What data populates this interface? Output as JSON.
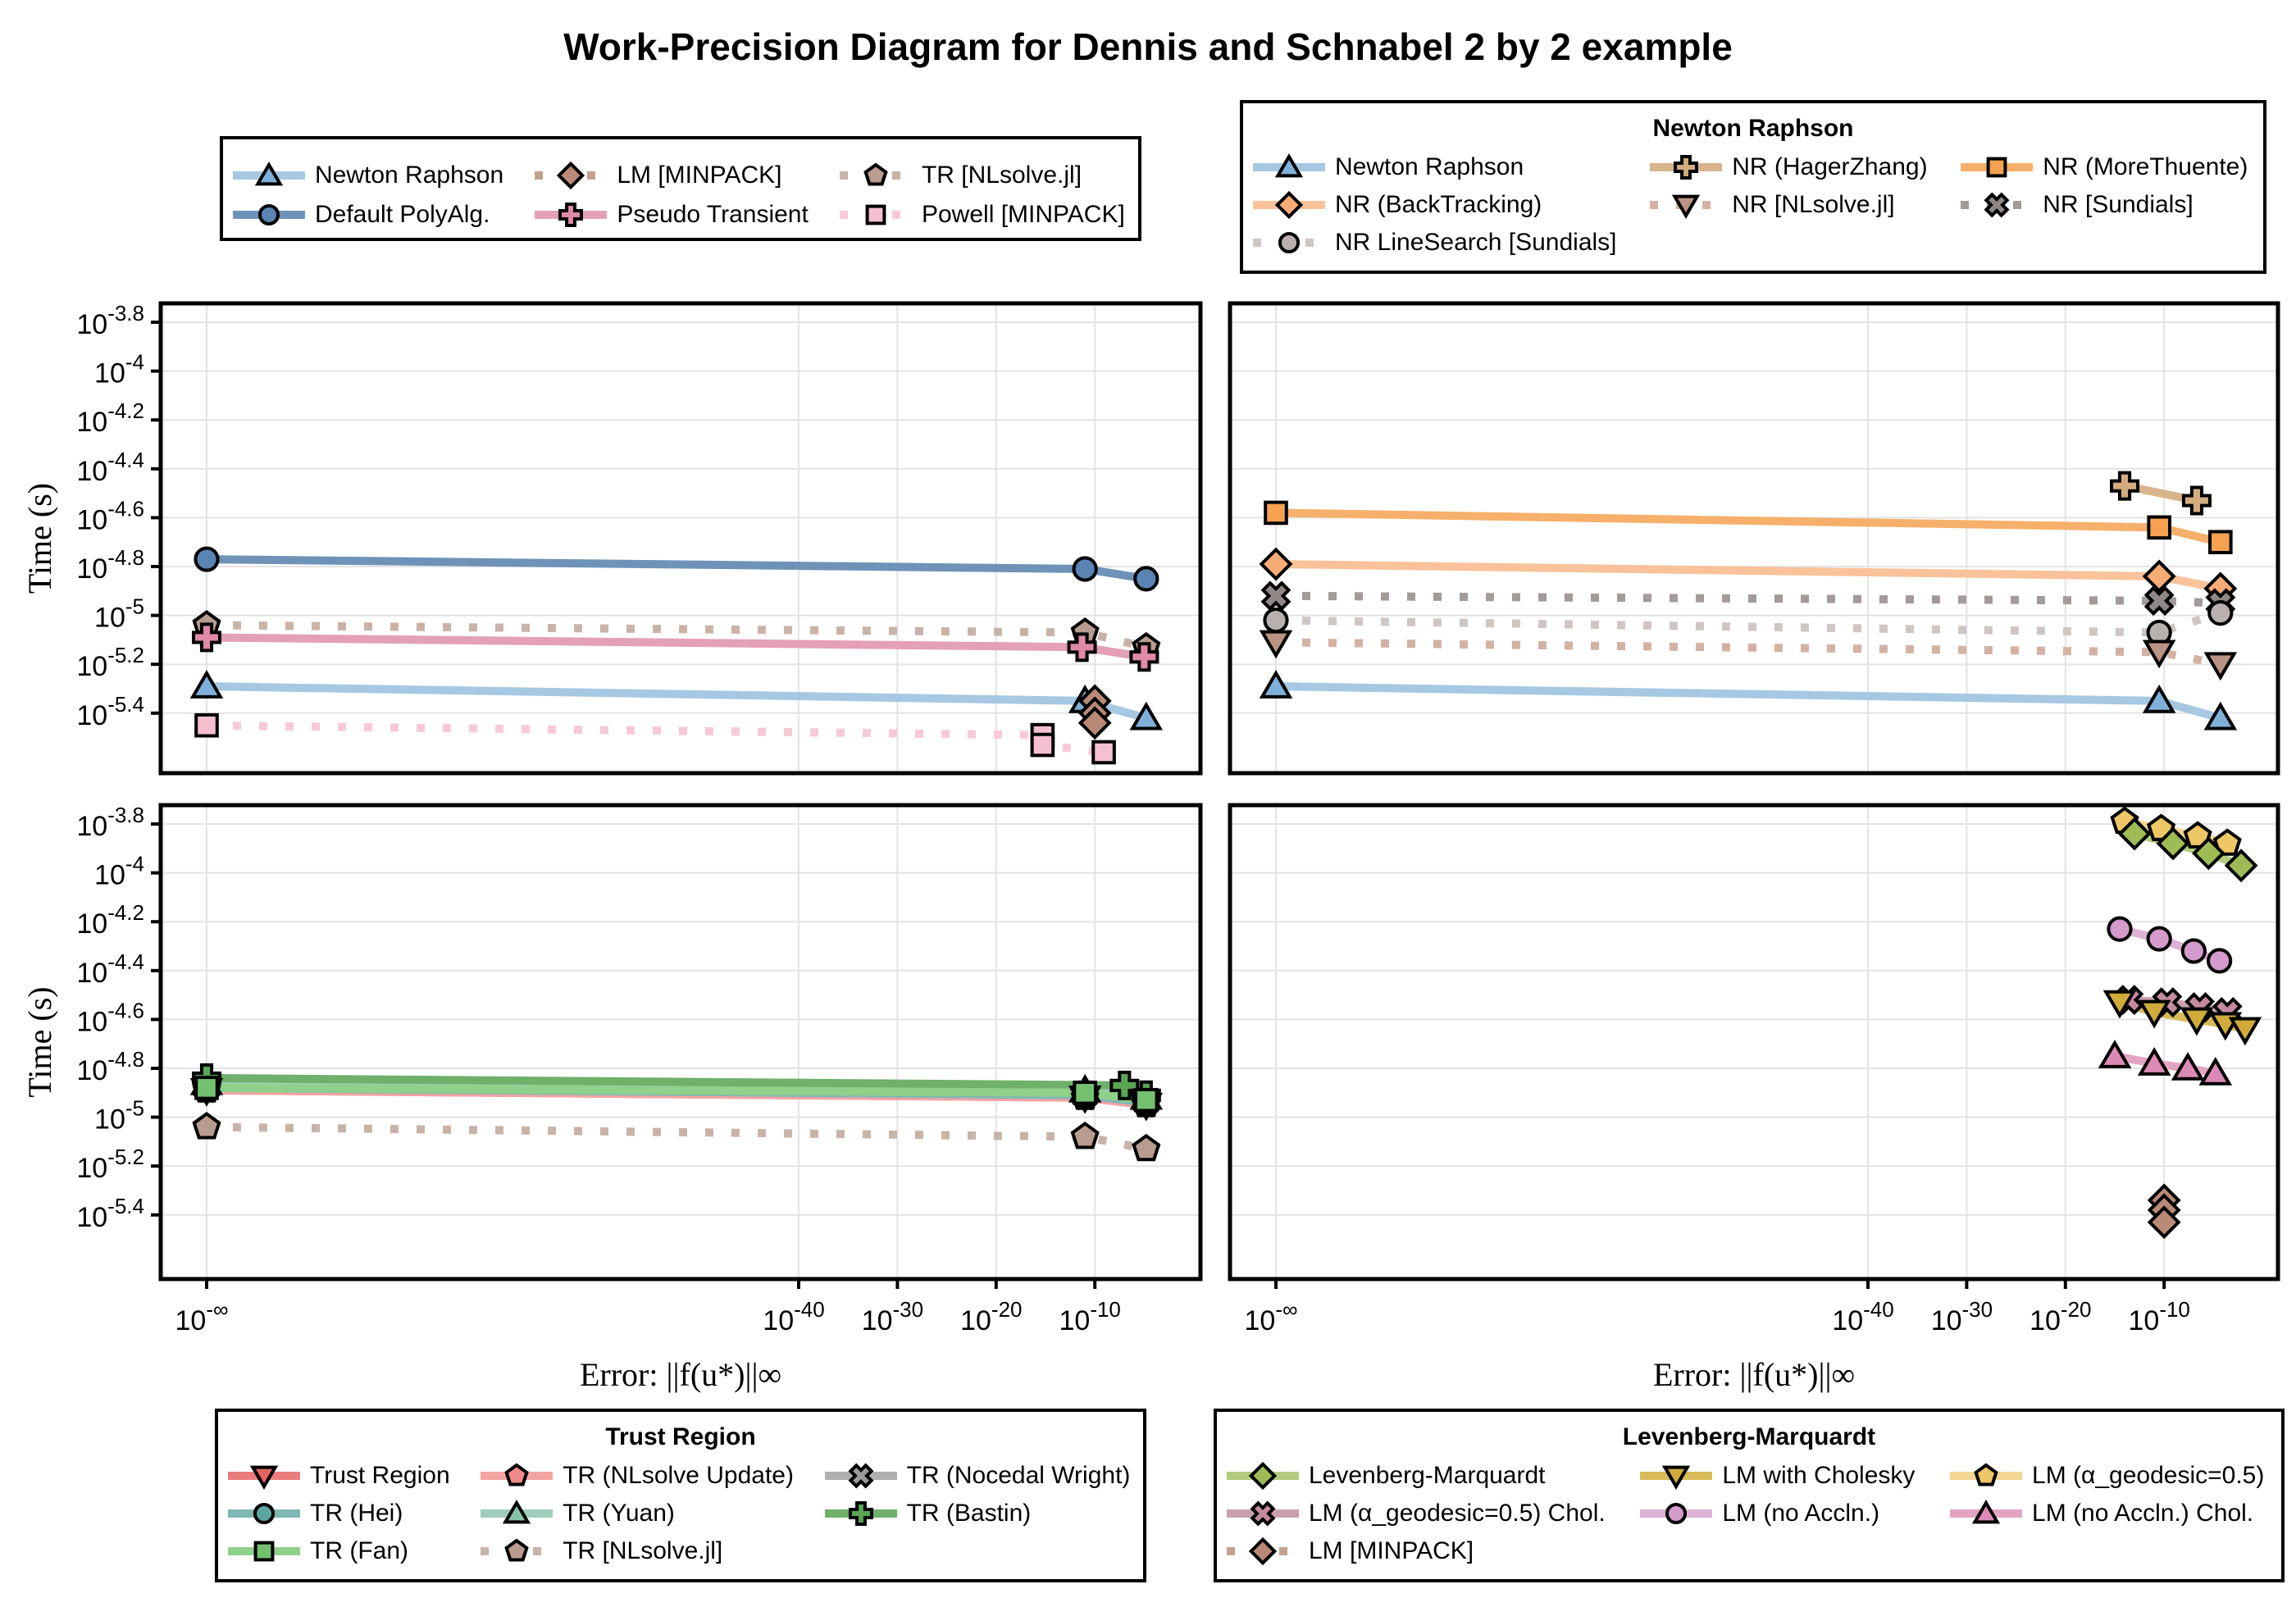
{
  "title": "Work-Precision Diagram for Dennis and Schnabel 2 by 2 example",
  "legends": {
    "general": {
      "title": "",
      "columns": 3,
      "items": [
        {
          "label": "Newton Raphson",
          "series": "Newton Raphson"
        },
        {
          "label": "LM [MINPACK]",
          "series": "LM [MINPACK]"
        },
        {
          "label": "TR [NLsolve.jl]",
          "series": "TR [NLsolve.jl]"
        },
        {
          "label": "Default PolyAlg.",
          "series": "Default PolyAlg."
        },
        {
          "label": "Pseudo Transient",
          "series": "Pseudo Transient"
        },
        {
          "label": "Powell [MINPACK]",
          "series": "Powell [MINPACK]"
        }
      ]
    },
    "newton": {
      "title": "Newton Raphson",
      "columns": 3,
      "items": [
        {
          "label": "Newton Raphson",
          "series": "Newton Raphson"
        },
        {
          "label": "NR (HagerZhang)",
          "series": "NR (HagerZhang)"
        },
        {
          "label": "NR (MoreThuente)",
          "series": "NR (MoreThuente)"
        },
        {
          "label": "NR (BackTracking)",
          "series": "NR (BackTracking)"
        },
        {
          "label": "NR [NLsolve.jl]",
          "series": "NR [NLsolve.jl]"
        },
        {
          "label": "NR [Sundials]",
          "series": "NR [Sundials]"
        },
        {
          "label": "NR LineSearch [Sundials]",
          "series": "NR LineSearch [Sundials]"
        }
      ]
    },
    "trust": {
      "title": "Trust Region",
      "columns": 3,
      "items": [
        {
          "label": "Trust Region",
          "series": "Trust Region"
        },
        {
          "label": "TR (NLsolve Update)",
          "series": "TR (NLsolve Update)"
        },
        {
          "label": "TR (Nocedal Wright)",
          "series": "TR (Nocedal Wright)"
        },
        {
          "label": "TR (Hei)",
          "series": "TR (Hei)"
        },
        {
          "label": "TR (Yuan)",
          "series": "TR (Yuan)"
        },
        {
          "label": "TR (Bastin)",
          "series": "TR (Bastin)"
        },
        {
          "label": "TR (Fan)",
          "series": "TR (Fan)"
        },
        {
          "label": "TR [NLsolve.jl]",
          "series": "TR [NLsolve.jl]"
        }
      ]
    },
    "lm": {
      "title": "Levenberg-Marquardt",
      "columns": 3,
      "items": [
        {
          "label": "Levenberg-Marquardt",
          "series": "Levenberg-Marquardt"
        },
        {
          "label": "LM with Cholesky",
          "series": "LM with Cholesky"
        },
        {
          "label": "LM (α_geodesic=0.5)",
          "series": "LM (α_geodesic=0.5)"
        },
        {
          "label": "LM (α_geodesic=0.5) Chol.",
          "series": "LM (α_geodesic=0.5) Chol."
        },
        {
          "label": "LM (no Accln.)",
          "series": "LM (no Accln.)"
        },
        {
          "label": "LM (no Accln.) Chol.",
          "series": "LM (no Accln.) Chol."
        },
        {
          "label": "LM [MINPACK]",
          "series": "LM [MINPACK]"
        }
      ]
    }
  },
  "styles": {
    "Newton Raphson": {
      "color": "#a6c8e2",
      "marker_fill": "#7fb0d9",
      "marker": "triangle-up",
      "dash": false
    },
    "Default PolyAlg.": {
      "color": "#6f93b8",
      "marker_fill": "#5a84b3",
      "marker": "circle",
      "dash": false
    },
    "LM [MINPACK]": {
      "color": "#c4a090",
      "marker_fill": "#b98a78",
      "marker": "diamond",
      "dash": true
    },
    "Pseudo Transient": {
      "color": "#e3a0b6",
      "marker_fill": "#e08aa8",
      "marker": "cross",
      "dash": false
    },
    "TR [NLsolve.jl]": {
      "color": "#c9b3a8",
      "marker_fill": "#b89c8f",
      "marker": "pentagon",
      "dash": true
    },
    "Powell [MINPACK]": {
      "color": "#f7c9d6",
      "marker_fill": "#f5bfd0",
      "marker": "square",
      "dash": true
    },
    "NR (HagerZhang)": {
      "color": "#d8b48c",
      "marker_fill": "#d4ac7d",
      "marker": "cross",
      "dash": false
    },
    "NR (MoreThuente)": {
      "color": "#f6b06b",
      "marker_fill": "#f5a14f",
      "marker": "square",
      "dash": false
    },
    "NR (BackTracking)": {
      "color": "#f9c29a",
      "marker_fill": "#f7ac76",
      "marker": "diamond",
      "dash": false
    },
    "NR [NLsolve.jl]": {
      "color": "#d3b2a4",
      "marker_fill": "#bb9384",
      "marker": "triangle-down",
      "dash": true
    },
    "NR [Sundials]": {
      "color": "#a39a9a",
      "marker_fill": "#8f8686",
      "marker": "xcross",
      "dash": true
    },
    "NR LineSearch [Sundials]": {
      "color": "#cfc6c4",
      "marker_fill": "#b9b1b0",
      "marker": "circle",
      "dash": true
    },
    "Trust Region": {
      "color": "#e87c7c",
      "marker_fill": "#e36464",
      "marker": "triangle-down",
      "dash": false
    },
    "TR (NLsolve Update)": {
      "color": "#f5a3a3",
      "marker_fill": "#f08b8b",
      "marker": "pentagon",
      "dash": false
    },
    "TR (Nocedal Wright)": {
      "color": "#b0b0b0",
      "marker_fill": "#9a9a9a",
      "marker": "xcross",
      "dash": false
    },
    "TR (Hei)": {
      "color": "#7fb7b4",
      "marker_fill": "#5ea5a2",
      "marker": "circle",
      "dash": false
    },
    "TR (Yuan)": {
      "color": "#9fcdb9",
      "marker_fill": "#86c2a8",
      "marker": "triangle-up",
      "dash": false
    },
    "TR (Bastin)": {
      "color": "#6fb06a",
      "marker_fill": "#5aa655",
      "marker": "cross",
      "dash": false
    },
    "TR (Fan)": {
      "color": "#8fd08a",
      "marker_fill": "#74c06f",
      "marker": "square",
      "dash": false
    },
    "Levenberg-Marquardt": {
      "color": "#b3cc80",
      "marker_fill": "#9fbb55",
      "marker": "diamond",
      "dash": false
    },
    "LM with Cholesky": {
      "color": "#d8bb58",
      "marker_fill": "#d0ab3a",
      "marker": "triangle-down",
      "dash": false
    },
    "LM (α_geodesic=0.5)": {
      "color": "#f3d693",
      "marker_fill": "#efc665",
      "marker": "pentagon",
      "dash": false
    },
    "LM (α_geodesic=0.5) Chol.": {
      "color": "#c9a0b0",
      "marker_fill": "#c48ba0",
      "marker": "xcross",
      "dash": false
    },
    "LM (no Accln.)": {
      "color": "#ddb2d6",
      "marker_fill": "#d39acb",
      "marker": "circle",
      "dash": false
    },
    "LM (no Accln.) Chol.": {
      "color": "#e3a4c4",
      "marker_fill": "#db8ab5",
      "marker": "triangle-up",
      "dash": false
    }
  },
  "chart_data": [
    {
      "type": "line",
      "panel": "top-left",
      "title": "",
      "xlabel": "Error: ||f(u*)||∞",
      "ylabel": "Time (s)",
      "xscale": "log10",
      "yscale": "log10",
      "xlim_log10": [
        -72,
        0.6
      ],
      "ylim_log10": [
        -5.8,
        -3.7
      ],
      "x_tick_labels": [],
      "y_ticks_log10": [
        -3.8,
        -4,
        -4.2,
        -4.4,
        -4.6,
        -4.8,
        -5,
        -5.2,
        -5.4
      ],
      "y_tick_labels": [
        "-3.8",
        "-4",
        "-4.2",
        "-4.4",
        "-4.6",
        "-4.8",
        "-5",
        "-5.2",
        "-5.4"
      ],
      "grid": true,
      "legend": "top-left-outside",
      "series": [
        {
          "name": "Default PolyAlg.",
          "x_log10": [
            "-inf",
            -11,
            -4.8
          ],
          "y_log10": [
            -4.77,
            -4.81,
            -4.85
          ]
        },
        {
          "name": "TR [NLsolve.jl]",
          "x_log10": [
            "-inf",
            -11,
            -4.8
          ],
          "y_log10": [
            -5.04,
            -5.07,
            -5.13
          ]
        },
        {
          "name": "Pseudo Transient",
          "x_log10": [
            "-inf",
            -11.3,
            -5
          ],
          "y_log10": [
            -5.09,
            -5.13,
            -5.17
          ]
        },
        {
          "name": "Newton Raphson",
          "x_log10": [
            "-inf",
            -11,
            -4.8
          ],
          "y_log10": [
            -5.29,
            -5.35,
            -5.42
          ]
        },
        {
          "name": "LM [MINPACK]",
          "x_log10": [
            -10,
            -10,
            -10
          ],
          "y_log10": [
            -5.35,
            -5.4,
            -5.44
          ]
        },
        {
          "name": "Powell [MINPACK]",
          "x_log10": [
            "-inf",
            -15.3,
            -15.3,
            -9.1
          ],
          "y_log10": [
            -5.45,
            -5.49,
            -5.53,
            -5.56
          ]
        }
      ]
    },
    {
      "type": "line",
      "panel": "top-right",
      "title": "",
      "xlabel": "Error: ||f(u*)||∞",
      "ylabel": "",
      "xscale": "log10",
      "yscale": "log10",
      "xlim_log10": [
        -72,
        0.6
      ],
      "ylim_log10": [
        -5.8,
        -3.7
      ],
      "grid": true,
      "legend": "top-right-outside",
      "series": [
        {
          "name": "NR (HagerZhang)",
          "x_log10": [
            -14,
            -6.7
          ],
          "y_log10": [
            -4.47,
            -4.53
          ]
        },
        {
          "name": "NR (MoreThuente)",
          "x_log10": [
            "-inf",
            -10.5,
            -4.3
          ],
          "y_log10": [
            -4.58,
            -4.64,
            -4.7
          ]
        },
        {
          "name": "NR (BackTracking)",
          "x_log10": [
            "-inf",
            -10.5,
            -4.3
          ],
          "y_log10": [
            -4.79,
            -4.84,
            -4.89
          ]
        },
        {
          "name": "NR [Sundials]",
          "x_log10": [
            "-inf",
            -10.5,
            -4.3
          ],
          "y_log10": [
            -4.92,
            -4.94,
            -4.95
          ]
        },
        {
          "name": "NR LineSearch [Sundials]",
          "x_log10": [
            "-inf",
            -10.5,
            -4.3
          ],
          "y_log10": [
            -5.02,
            -5.07,
            -4.99
          ]
        },
        {
          "name": "NR [NLsolve.jl]",
          "x_log10": [
            "-inf",
            -10.5,
            -4.3
          ],
          "y_log10": [
            -5.11,
            -5.15,
            -5.2
          ]
        },
        {
          "name": "Newton Raphson",
          "x_log10": [
            "-inf",
            -10.5,
            -4.3
          ],
          "y_log10": [
            -5.29,
            -5.35,
            -5.42
          ]
        }
      ]
    },
    {
      "type": "line",
      "panel": "bottom-left",
      "title": "",
      "xlabel": "Error: ||f(u*)||∞",
      "ylabel": "Time (s)",
      "xscale": "log10",
      "yscale": "log10",
      "xlim_log10": [
        -72,
        0.6
      ],
      "ylim_log10": [
        -5.8,
        -3.7
      ],
      "x_ticks_log10": [
        "-inf",
        -40,
        -30,
        -20,
        -10
      ],
      "x_tick_labels": [
        "-∞",
        "-40",
        "-30",
        "-20",
        "-10"
      ],
      "y_ticks_log10": [
        -3.8,
        -4,
        -4.2,
        -4.4,
        -4.6,
        -4.8,
        -5,
        -5.2,
        -5.4
      ],
      "y_tick_labels": [
        "-3.8",
        "-4",
        "-4.2",
        "-4.4",
        "-4.6",
        "-4.8",
        "-5",
        "-5.2",
        "-5.4"
      ],
      "grid": true,
      "legend": "bottom-left-outside",
      "series": [
        {
          "name": "Trust Region",
          "x_log10": [
            "-inf",
            -11,
            -4.8
          ],
          "y_log10": [
            -4.89,
            -4.92,
            -4.95
          ]
        },
        {
          "name": "TR (NLsolve Update)",
          "x_log10": [
            "-inf",
            -11,
            -4.8
          ],
          "y_log10": [
            -4.89,
            -4.92,
            -4.95
          ]
        },
        {
          "name": "TR (Nocedal Wright)",
          "x_log10": [
            "-inf",
            -11,
            -4.8
          ],
          "y_log10": [
            -4.88,
            -4.91,
            -4.94
          ]
        },
        {
          "name": "TR (Hei)",
          "x_log10": [
            "-inf",
            -11,
            -4.8
          ],
          "y_log10": [
            -4.88,
            -4.91,
            -4.94
          ]
        },
        {
          "name": "TR (Yuan)",
          "x_log10": [
            "-inf",
            -11,
            -4.8
          ],
          "y_log10": [
            -4.86,
            -4.89,
            -4.92
          ]
        },
        {
          "name": "TR (Bastin)",
          "x_log10": [
            "-inf",
            -7,
            -4.8
          ],
          "y_log10": [
            -4.84,
            -4.87,
            -4.91
          ]
        },
        {
          "name": "TR (Fan)",
          "x_log10": [
            "-inf",
            -11,
            -4.8
          ],
          "y_log10": [
            -4.88,
            -4.9,
            -4.93
          ]
        },
        {
          "name": "TR [NLsolve.jl]",
          "x_log10": [
            "-inf",
            -11,
            -4.8
          ],
          "y_log10": [
            -5.04,
            -5.08,
            -5.13
          ]
        }
      ]
    },
    {
      "type": "scatter-line",
      "panel": "bottom-right",
      "title": "",
      "xlabel": "Error: ||f(u*)||∞",
      "ylabel": "",
      "xscale": "log10",
      "yscale": "log10",
      "xlim_log10": [
        -72,
        0.6
      ],
      "ylim_log10": [
        -5.8,
        -3.7
      ],
      "x_ticks_log10": [
        "-inf",
        -40,
        -30,
        -20,
        -10
      ],
      "x_tick_labels": [
        "-∞",
        "-40",
        "-30",
        "-20",
        "-10"
      ],
      "grid": true,
      "legend": "bottom-right-outside",
      "series": [
        {
          "name": "LM (α_geodesic=0.5)",
          "x_log10": [
            -14,
            -10.3,
            -6.6,
            -3.6
          ],
          "y_log10": [
            -3.79,
            -3.82,
            -3.85,
            -3.88
          ]
        },
        {
          "name": "Levenberg-Marquardt",
          "x_log10": [
            -13,
            -9.1,
            -5.5,
            -2.2
          ],
          "y_log10": [
            -3.84,
            -3.88,
            -3.92,
            -3.97
          ]
        },
        {
          "name": "LM (no Accln.)",
          "x_log10": [
            -14.5,
            -10.5,
            -7,
            -4.4
          ],
          "y_log10": [
            -4.23,
            -4.27,
            -4.32,
            -4.36
          ]
        },
        {
          "name": "LM (α_geodesic=0.5) Chol.",
          "x_log10": [
            -13.6,
            -9.7,
            -6.4,
            -3.6
          ],
          "y_log10": [
            -4.52,
            -4.53,
            -4.55,
            -4.57
          ]
        },
        {
          "name": "LM with Cholesky",
          "x_log10": [
            -14.5,
            -11,
            -6.7,
            -3.8,
            -1.8
          ],
          "y_log10": [
            -4.53,
            -4.57,
            -4.6,
            -4.62,
            -4.64
          ]
        },
        {
          "name": "LM (no Accln.) Chol.",
          "x_log10": [
            -15,
            -11,
            -7.6,
            -4.8
          ],
          "y_log10": [
            -4.75,
            -4.78,
            -4.8,
            -4.82
          ]
        },
        {
          "name": "LM [MINPACK]",
          "x_log10": [
            -10,
            -10,
            -10
          ],
          "y_log10": [
            -5.34,
            -5.38,
            -5.43
          ]
        }
      ]
    }
  ]
}
